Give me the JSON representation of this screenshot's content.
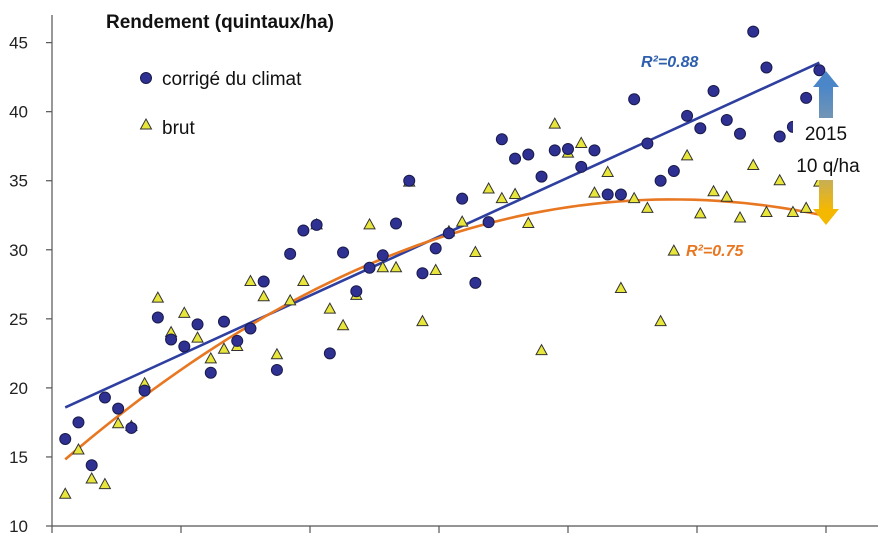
{
  "chart_data": {
    "type": "scatter",
    "title": "Rendement (quintaux/ha)",
    "ylim": [
      10,
      47
    ],
    "yticks": [
      10,
      15,
      20,
      25,
      30,
      35,
      40,
      45
    ],
    "xlim": [
      0,
      58.5
    ],
    "grid": false,
    "legend_position": "top-left",
    "colors": {
      "corrige": "#2e3192",
      "brut": "#e8e63a",
      "linear_fit": "#2e3fa0",
      "poly_fit": "#e87722",
      "arrow_top": "#4a86c8",
      "arrow_bottom": "#f5b800"
    },
    "series": [
      {
        "name": "corrigé du climat",
        "marker": "circle",
        "x": [
          1,
          2,
          3,
          4,
          5,
          6,
          7,
          8,
          9,
          10,
          11,
          12,
          13,
          14,
          15,
          16,
          17,
          18,
          19,
          20,
          21,
          22,
          23,
          24,
          25,
          26,
          27,
          28,
          29,
          30,
          31,
          32,
          33,
          34,
          35,
          36,
          37,
          38,
          39,
          40,
          41,
          42,
          43,
          44,
          45,
          46,
          47,
          48,
          49,
          50,
          51,
          52,
          53,
          54,
          55,
          56,
          57,
          58
        ],
        "values": [
          16.3,
          17.5,
          14.4,
          19.3,
          18.5,
          17.1,
          19.8,
          25.1,
          23.5,
          23.0,
          24.6,
          21.1,
          24.8,
          23.4,
          24.3,
          27.7,
          21.3,
          29.7,
          31.4,
          31.8,
          22.5,
          29.8,
          27.0,
          28.7,
          29.6,
          31.9,
          35.0,
          28.3,
          30.1,
          31.2,
          33.7,
          27.6,
          32.0,
          38.0,
          36.6,
          36.9,
          35.3,
          37.2,
          37.3,
          36.0,
          37.2,
          34.0,
          34.0,
          40.9,
          37.7,
          35.0,
          35.7,
          39.7,
          38.8,
          41.5,
          39.4,
          38.4,
          45.8,
          43.2,
          38.2,
          38.9,
          41.0,
          43.0
        ]
      },
      {
        "name": "brut",
        "marker": "triangle",
        "x": [
          1,
          2,
          3,
          4,
          5,
          6,
          7,
          8,
          9,
          10,
          11,
          12,
          13,
          14,
          15,
          16,
          17,
          18,
          19,
          20,
          21,
          22,
          23,
          24,
          25,
          26,
          27,
          28,
          29,
          30,
          31,
          32,
          33,
          34,
          35,
          36,
          37,
          38,
          39,
          40,
          41,
          42,
          43,
          44,
          45,
          46,
          47,
          48,
          49,
          50,
          51,
          52,
          53,
          54,
          55,
          56,
          57,
          58
        ],
        "values": [
          12.3,
          15.5,
          13.4,
          13.0,
          17.4,
          17.2,
          20.3,
          26.5,
          24.0,
          25.4,
          23.6,
          22.1,
          22.8,
          23.0,
          27.7,
          26.6,
          22.4,
          26.3,
          27.7,
          31.8,
          25.7,
          24.5,
          26.7,
          31.8,
          28.7,
          28.7,
          34.9,
          24.8,
          28.5,
          31.3,
          32.0,
          29.8,
          34.4,
          33.7,
          34.0,
          31.9,
          22.7,
          39.1,
          37.0,
          37.7,
          34.1,
          35.6,
          27.2,
          33.7,
          33.0,
          24.8,
          29.9,
          36.8,
          32.6,
          34.2,
          33.8,
          32.3,
          36.1,
          32.7,
          35.0,
          32.7,
          33.0,
          34.9
        ]
      }
    ],
    "fits": [
      {
        "type": "linear",
        "label": "R²=0.88",
        "color": "#2e5fae"
      },
      {
        "type": "polynomial",
        "label": "R²=0.75",
        "color": "#e87722"
      }
    ],
    "annotation": {
      "line1": "2015",
      "line2": "10 q/ha"
    }
  }
}
